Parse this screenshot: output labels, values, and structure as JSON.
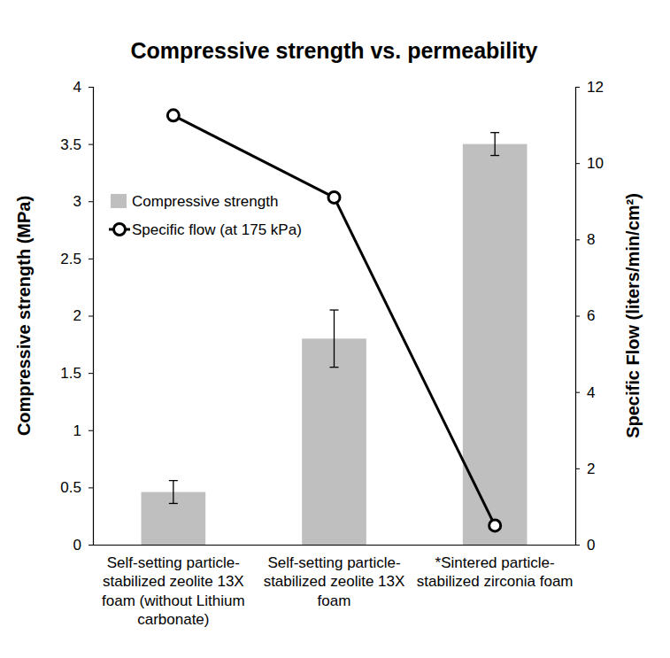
{
  "chart_data": {
    "type": "bar",
    "title": "Compressive strength vs. permeability",
    "categories": [
      "Self-setting particle-stabilized zeolite 13X foam (without Lithium carbonate)",
      "Self-setting particle-stabilized zeolite 13X foam",
      "*Sintered particle-stabilized zirconia foam"
    ],
    "series": [
      {
        "name": "Compressive strength",
        "type": "bar",
        "color": "#bfbfbf",
        "values": [
          0.46,
          1.8,
          3.5
        ],
        "errors": [
          0.1,
          0.25,
          0.1
        ]
      },
      {
        "name": "Specific flow (at 175 kPa)",
        "type": "line",
        "axis": "y2",
        "color": "#000000",
        "marker": "circle",
        "values": [
          11.25,
          9.1,
          0.5
        ]
      }
    ],
    "y_label": "Compressive strength (MPa)",
    "y2_label": "Specific Flow (liters/min/cm²)",
    "ylim": [
      0,
      4
    ],
    "yticks": [
      0,
      0.5,
      1,
      1.5,
      2,
      2.5,
      3,
      3.5,
      4
    ],
    "y2lim": [
      0,
      12
    ],
    "y2ticks": [
      0,
      2,
      4,
      6,
      8,
      10,
      12
    ],
    "legend": "upper left"
  }
}
